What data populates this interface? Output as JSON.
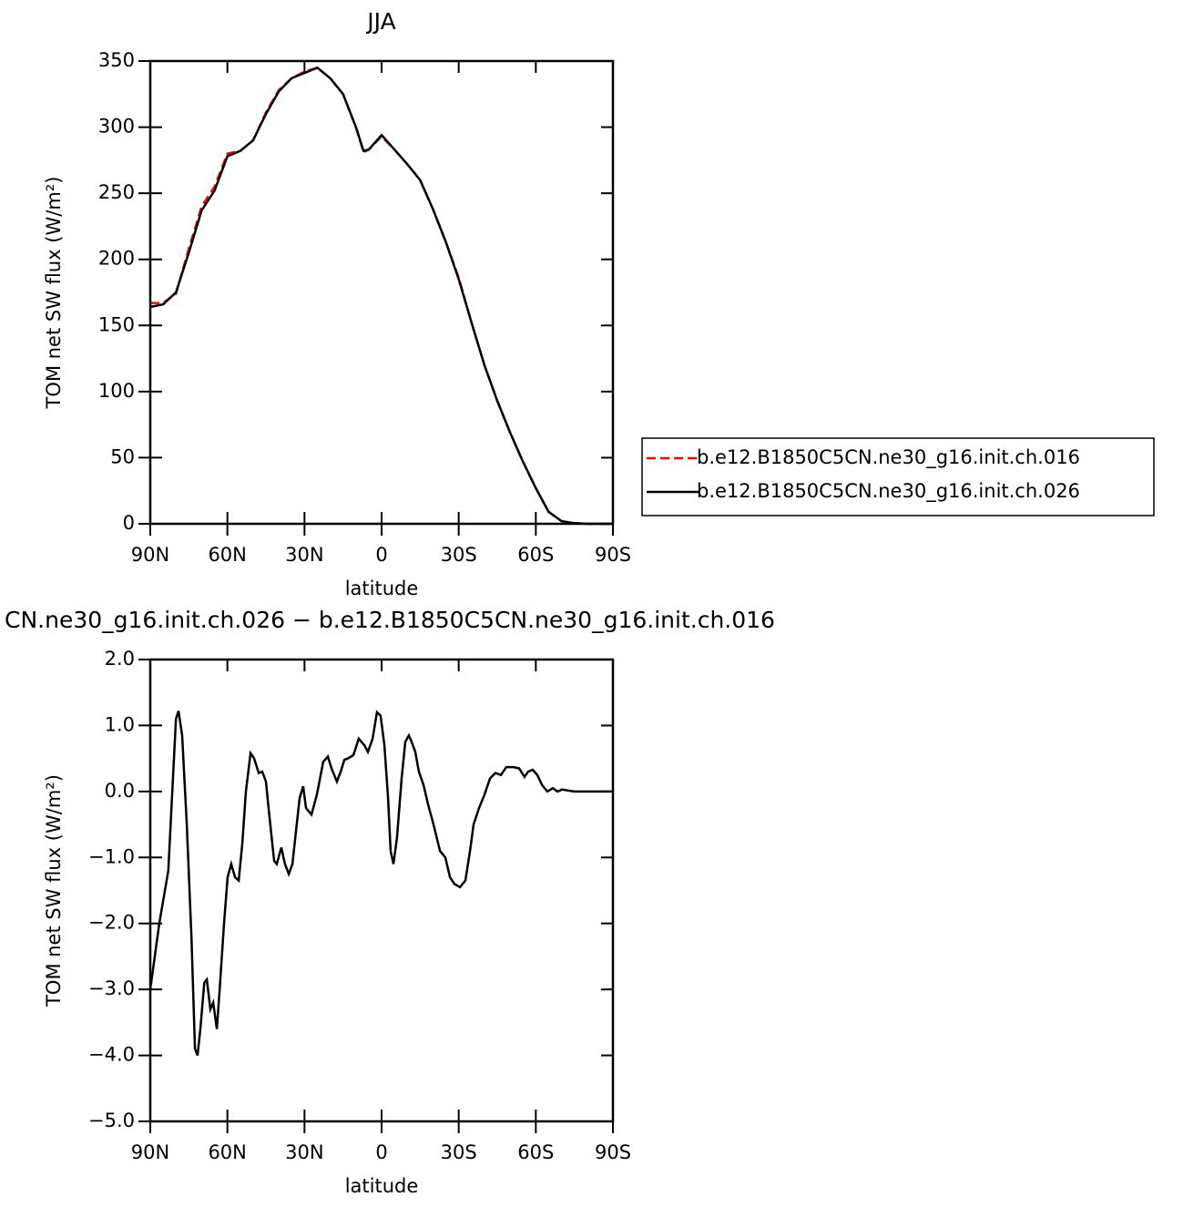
{
  "chart_data": [
    {
      "type": "line",
      "title": "JJA",
      "xlabel": "latitude",
      "ylabel": "TOM net SW flux (W/m²)",
      "x": [
        90,
        85,
        80,
        75,
        70,
        65,
        60,
        55,
        50,
        45,
        40,
        35,
        30,
        25,
        20,
        15,
        10,
        7,
        5,
        0,
        -5,
        -10,
        -15,
        -20,
        -25,
        -30,
        -35,
        -40,
        -45,
        -50,
        -55,
        -60,
        -65,
        -70,
        -75,
        -80,
        -85,
        -90
      ],
      "series": [
        {
          "name": "b.e12.B1850C5CN.ne30_g16.init.ch.016",
          "color": "#ff0000",
          "dash": true,
          "values": [
            167,
            167,
            174,
            208,
            240,
            255,
            280,
            282,
            290,
            311,
            328,
            337,
            342,
            345,
            337,
            325,
            300,
            281,
            283,
            293,
            283,
            272,
            260,
            238,
            213,
            186,
            152,
            120,
            93,
            69,
            47,
            27,
            9,
            2,
            0.5,
            0,
            0,
            0
          ]
        },
        {
          "name": "b.e12.B1850C5CN.ne30_g16.init.ch.026",
          "color": "#000000",
          "dash": false,
          "values": [
            164,
            166,
            175,
            205,
            237,
            252,
            278,
            282,
            290,
            310,
            327,
            337,
            341,
            345,
            337,
            325,
            300,
            282,
            283,
            294,
            283,
            272,
            260,
            238,
            213,
            185,
            152,
            120,
            93,
            69,
            47,
            27,
            9,
            2,
            0.5,
            0,
            0,
            0
          ]
        }
      ],
      "xlim": [
        90,
        -90
      ],
      "xticks": [
        {
          "value": 90,
          "label": "90N"
        },
        {
          "value": 60,
          "label": "60N"
        },
        {
          "value": 30,
          "label": "30N"
        },
        0,
        {
          "value": -30,
          "label": "30S"
        },
        {
          "value": -60,
          "label": "60S"
        },
        {
          "value": -90,
          "label": "90S"
        }
      ],
      "ylim": [
        0,
        350
      ],
      "yticks": [
        0,
        50,
        100,
        150,
        200,
        250,
        300,
        350
      ],
      "legend_position": "right"
    },
    {
      "type": "line",
      "title": "CN.ne30_g16.init.ch.026 − b.e12.B1850C5CN.ne30_g16.init.ch.016",
      "xlabel": "latitude",
      "ylabel": "TOM net SW flux (W/m²)",
      "x": [
        90,
        86.5,
        83,
        80,
        79,
        77.6,
        75.8,
        74,
        72.6,
        71.6,
        70.5,
        69,
        68,
        66.6,
        65.5,
        64.1,
        63,
        61.3,
        59.9,
        58.5,
        57,
        55.6,
        54.2,
        52.8,
        51,
        49.6,
        47.8,
        46.4,
        45,
        43.6,
        41.8,
        40.8,
        39,
        37.6,
        36.1,
        34.7,
        33.3,
        31.9,
        30.5,
        29.4,
        27.3,
        25.2,
        22.7,
        20.9,
        19.5,
        17.4,
        15.9,
        14.5,
        13.1,
        11,
        8.9,
        6.7,
        5.3,
        3.5,
        1.8,
        0.4,
        -1.1,
        -2.5,
        -3.5,
        -4.6,
        -6,
        -7.8,
        -9.2,
        -10.6,
        -11.7,
        -13.1,
        -14.5,
        -16.3,
        -18.1,
        -20.2,
        -22.7,
        -24.8,
        -26.6,
        -28.3,
        -30.5,
        -32.6,
        -34.4,
        -35.8,
        -37.9,
        -40,
        -42.2,
        -44.3,
        -46.4,
        -48.5,
        -51.4,
        -53.5,
        -55.6,
        -57,
        -58.8,
        -60.6,
        -62.4,
        -64.5,
        -66.6,
        -68.4,
        -70.2,
        -74.8,
        -81.9,
        -90
      ],
      "series": [
        {
          "color": "#000000",
          "dash": false,
          "values": [
            -3.0,
            -2.0,
            -1.2,
            1.1,
            1.22,
            0.85,
            -0.5,
            -2.2,
            -3.9,
            -4.0,
            -3.6,
            -2.9,
            -2.85,
            -3.3,
            -3.2,
            -3.6,
            -3.0,
            -2.0,
            -1.3,
            -1.1,
            -1.3,
            -1.35,
            -0.8,
            0.0,
            0.58,
            0.5,
            0.28,
            0.3,
            0.15,
            -0.4,
            -1.05,
            -1.1,
            -0.85,
            -1.1,
            -1.25,
            -1.1,
            -0.6,
            -0.1,
            0.08,
            -0.25,
            -0.35,
            -0.05,
            0.45,
            0.53,
            0.35,
            0.15,
            0.3,
            0.48,
            0.5,
            0.55,
            0.8,
            0.7,
            0.6,
            0.8,
            1.2,
            1.15,
            0.7,
            -0.1,
            -0.9,
            -1.1,
            -0.7,
            0.2,
            0.75,
            0.85,
            0.75,
            0.6,
            0.3,
            0.1,
            -0.2,
            -0.5,
            -0.9,
            -1.0,
            -1.3,
            -1.4,
            -1.45,
            -1.35,
            -0.9,
            -0.5,
            -0.25,
            -0.05,
            0.2,
            0.28,
            0.25,
            0.37,
            0.37,
            0.35,
            0.22,
            0.3,
            0.33,
            0.25,
            0.1,
            0.0,
            0.05,
            0.0,
            0.03,
            0.0,
            0.0,
            0.0
          ]
        }
      ],
      "xlim": [
        90,
        -90
      ],
      "xticks": [
        {
          "value": 90,
          "label": "90N"
        },
        {
          "value": 60,
          "label": "60N"
        },
        {
          "value": 30,
          "label": "30N"
        },
        0,
        {
          "value": -30,
          "label": "30S"
        },
        {
          "value": -60,
          "label": "60S"
        },
        {
          "value": -90,
          "label": "90S"
        }
      ],
      "ylim": [
        -5,
        2
      ],
      "yticks": [
        {
          "value": -5,
          "label": "−5.0"
        },
        {
          "value": -4,
          "label": "−4.0"
        },
        {
          "value": -3,
          "label": "−3.0"
        },
        {
          "value": -2,
          "label": "−2.0"
        },
        {
          "value": -1,
          "label": "−1.0"
        },
        {
          "value": 0,
          "label": "0.0"
        },
        {
          "value": 1,
          "label": "1.0"
        },
        {
          "value": 2,
          "label": "2.0"
        }
      ]
    }
  ]
}
